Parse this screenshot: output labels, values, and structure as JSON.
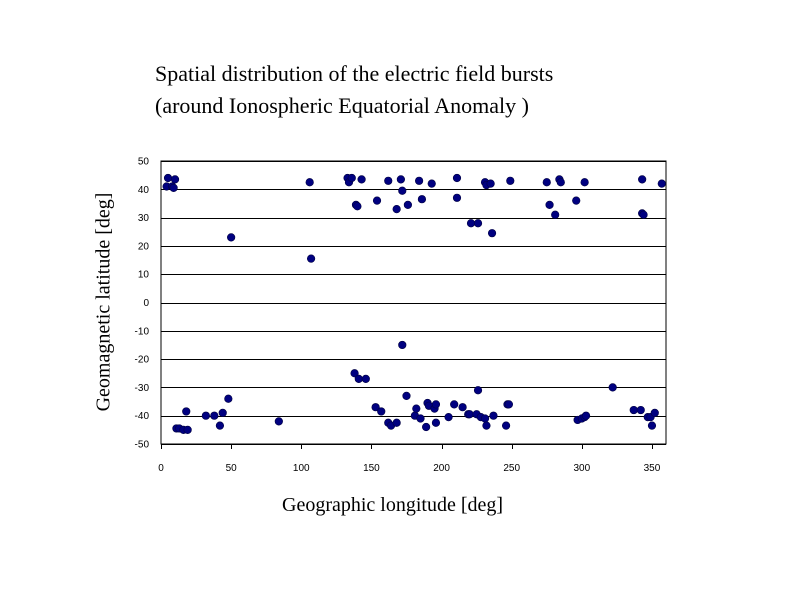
{
  "chart_data": {
    "type": "scatter",
    "title_lines": [
      "Spatial distribution of the electric field bursts",
      "(around Ionospheric Equatorial Anomaly )"
    ],
    "xlabel": "Geographic longitude [deg]",
    "ylabel": "Geomagnetic latitude [deg]",
    "xlim": [
      0,
      360
    ],
    "ylim": [
      -50,
      50
    ],
    "x_ticks": [
      0,
      50,
      100,
      150,
      200,
      250,
      300,
      350
    ],
    "y_ticks": [
      50,
      40,
      30,
      20,
      10,
      0,
      -10,
      -20,
      -30,
      -40,
      -50
    ],
    "grid": "horizontal",
    "marker_color": "#000080",
    "series": [
      {
        "points": [
          [
            5,
            44
          ],
          [
            4,
            41
          ],
          [
            8,
            41
          ],
          [
            9,
            40.5
          ],
          [
            10,
            43.5
          ],
          [
            50,
            23
          ],
          [
            106,
            42.5
          ],
          [
            107,
            15.5
          ],
          [
            133,
            44
          ],
          [
            134,
            42.5
          ],
          [
            136,
            44
          ],
          [
            139,
            34.5
          ],
          [
            140,
            34
          ],
          [
            143,
            43.5
          ],
          [
            154,
            36
          ],
          [
            162,
            43
          ],
          [
            168,
            33
          ],
          [
            171,
            43.5
          ],
          [
            172,
            39.5
          ],
          [
            176,
            34.5
          ],
          [
            184,
            43
          ],
          [
            186,
            36.5
          ],
          [
            193,
            42
          ],
          [
            211,
            44
          ],
          [
            211,
            37
          ],
          [
            221,
            28
          ],
          [
            226,
            28
          ],
          [
            231,
            42.5
          ],
          [
            232,
            41.5
          ],
          [
            235,
            42
          ],
          [
            236,
            24.5
          ],
          [
            249,
            43
          ],
          [
            275,
            42.5
          ],
          [
            277,
            34.5
          ],
          [
            281,
            31
          ],
          [
            284,
            43.5
          ],
          [
            285,
            42.5
          ],
          [
            296,
            36
          ],
          [
            302,
            42.5
          ],
          [
            343,
            43.5
          ],
          [
            343,
            31.5
          ],
          [
            344,
            31
          ],
          [
            357,
            42
          ],
          [
            172,
            -15
          ],
          [
            11,
            -44.5
          ],
          [
            13,
            -44.5
          ],
          [
            16,
            -45
          ],
          [
            18,
            -38.5
          ],
          [
            19,
            -45
          ],
          [
            32,
            -40
          ],
          [
            38,
            -40
          ],
          [
            42,
            -43.5
          ],
          [
            44,
            -39
          ],
          [
            48,
            -34
          ],
          [
            84,
            -42
          ],
          [
            138,
            -25
          ],
          [
            141,
            -27
          ],
          [
            146,
            -27
          ],
          [
            153,
            -37
          ],
          [
            157,
            -38.5
          ],
          [
            162,
            -42.5
          ],
          [
            164,
            -43.5
          ],
          [
            168,
            -42.5
          ],
          [
            175,
            -33
          ],
          [
            181,
            -40
          ],
          [
            182,
            -37.5
          ],
          [
            185,
            -41
          ],
          [
            189,
            -44
          ],
          [
            190,
            -35.5
          ],
          [
            191,
            -36.5
          ],
          [
            195,
            -37.5
          ],
          [
            196,
            -36
          ],
          [
            196,
            -42.5
          ],
          [
            205,
            -40.5
          ],
          [
            209,
            -36
          ],
          [
            215,
            -37
          ],
          [
            219,
            -39.5
          ],
          [
            220,
            -39.5
          ],
          [
            225,
            -39.5
          ],
          [
            226,
            -31
          ],
          [
            228,
            -40.5
          ],
          [
            231,
            -41
          ],
          [
            232,
            -43.5
          ],
          [
            237,
            -40
          ],
          [
            246,
            -43.5
          ],
          [
            247,
            -36
          ],
          [
            248,
            -36
          ],
          [
            297,
            -41.5
          ],
          [
            300,
            -41
          ],
          [
            302,
            -40.5
          ],
          [
            303,
            -40
          ],
          [
            322,
            -30
          ],
          [
            337,
            -38
          ],
          [
            342,
            -38
          ],
          [
            347,
            -40.5
          ],
          [
            349,
            -40.5
          ],
          [
            350,
            -43.5
          ],
          [
            352,
            -39
          ]
        ]
      }
    ]
  }
}
